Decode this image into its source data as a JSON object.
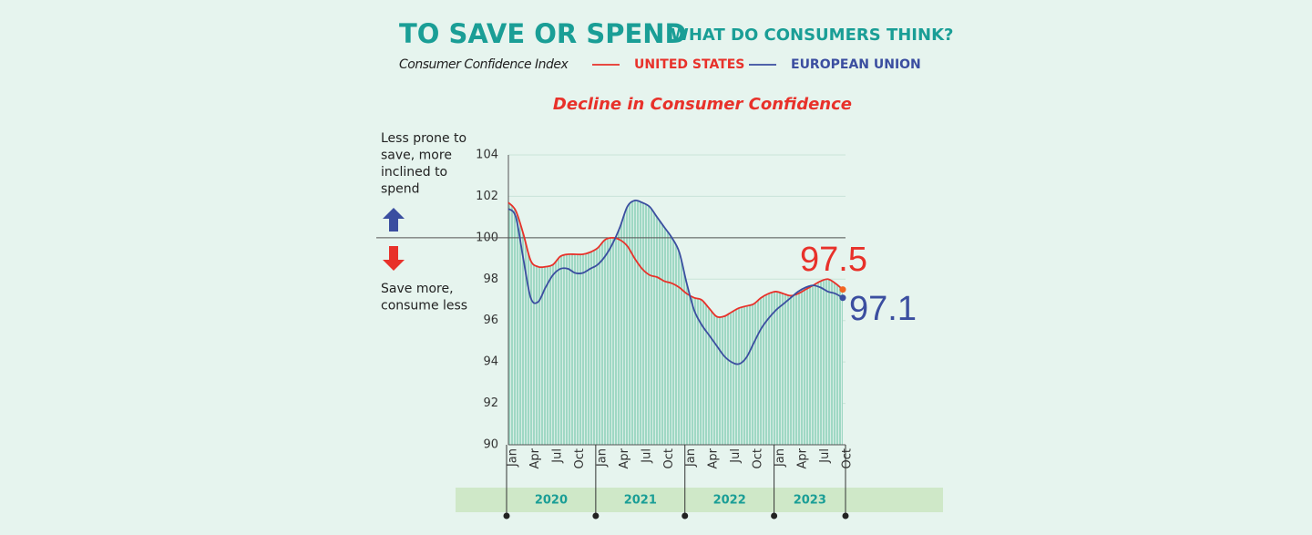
{
  "chart_data": {
    "type": "line",
    "title": "TO SAVE OR SPEND",
    "subtitle": "WHAT DO CONSUMERS THINK?",
    "index_label": "Consumer Confidence Index",
    "annotation": "Decline in Consumer Confidence",
    "upper_note": "Less prone to save, more inclined to spend",
    "lower_note": "Save more, consume less",
    "categories": [
      "Jan",
      null,
      null,
      "Apr",
      null,
      null,
      "Jul",
      null,
      null,
      "Oct",
      null,
      null,
      "Jan",
      null,
      null,
      "Apr",
      null,
      null,
      "Jul",
      null,
      null,
      "Oct",
      null,
      null,
      "Jan",
      null,
      null,
      "Apr",
      null,
      null,
      "Jul",
      null,
      null,
      "Oct",
      null,
      null,
      "Jan",
      null,
      null,
      "Apr",
      null,
      null,
      "Jul",
      null,
      null,
      "Oct"
    ],
    "years": [
      "2020",
      "2021",
      "2022",
      "2023"
    ],
    "series": [
      {
        "name": "UNITED STATES",
        "color": "#e8312a",
        "values": [
          101.7,
          101.3,
          100.2,
          98.9,
          98.6,
          98.6,
          98.7,
          99.1,
          99.2,
          99.2,
          99.2,
          99.3,
          99.5,
          99.9,
          100.0,
          99.9,
          99.6,
          99.0,
          98.5,
          98.2,
          98.1,
          97.9,
          97.8,
          97.6,
          97.3,
          97.1,
          97.0,
          96.6,
          96.2,
          96.2,
          96.4,
          96.6,
          96.7,
          96.8,
          97.1,
          97.3,
          97.4,
          97.3,
          97.2,
          97.3,
          97.5,
          97.7,
          97.9,
          98.0,
          97.8,
          97.5
        ]
      },
      {
        "name": "EUROPEAN UNION",
        "color": "#3b4ea0",
        "values": [
          101.4,
          101.0,
          99.0,
          97.1,
          96.9,
          97.6,
          98.2,
          98.5,
          98.5,
          98.3,
          98.3,
          98.5,
          98.7,
          99.1,
          99.7,
          100.5,
          101.5,
          101.8,
          101.7,
          101.5,
          101.0,
          100.5,
          100.0,
          99.3,
          97.8,
          96.5,
          95.8,
          95.3,
          94.8,
          94.3,
          94.0,
          93.9,
          94.2,
          94.9,
          95.6,
          96.1,
          96.5,
          96.8,
          97.1,
          97.4,
          97.6,
          97.7,
          97.6,
          97.4,
          97.3,
          97.1
        ]
      }
    ],
    "ylim": [
      90,
      104
    ],
    "yticks": [
      90,
      92,
      94,
      96,
      98,
      100,
      102,
      104
    ],
    "reference_line": 100,
    "grid": true,
    "fill_color": "#9fd8c4"
  }
}
